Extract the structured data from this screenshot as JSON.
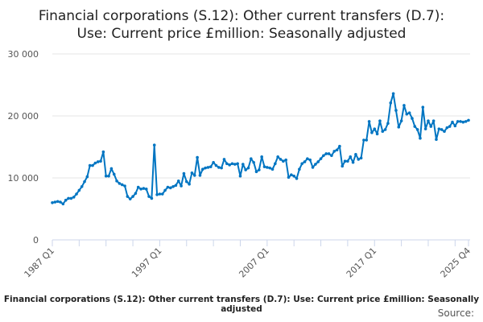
{
  "chart_data": {
    "type": "line",
    "title": [
      "Financial corporations (S.12): Other current transfers (D.7):",
      "Use: Current price £million: Seasonally adjusted"
    ],
    "xlabel": "",
    "ylabel": "",
    "start_year": 1987,
    "start_quarter": 1,
    "x_tick_labels": [
      "1987 Q1",
      "1997 Q1",
      "2007 Q1",
      "2017 Q1",
      "2025 Q4"
    ],
    "y_ticks": [
      0,
      10000,
      20000,
      30000
    ],
    "y_tick_labels": [
      "0",
      "10 000",
      "20 000",
      "30 000"
    ],
    "ylim": [
      0,
      30000
    ],
    "grid": true,
    "legend": "none",
    "series_color": "#0075c2",
    "series": [
      {
        "name": "Financial corporations (S.12): Other current transfers (D.7): Use: Current price £million: Seasonally adjusted",
        "values": [
          6000,
          6100,
          6200,
          6100,
          5800,
          6400,
          6700,
          6700,
          6900,
          7400,
          8000,
          8600,
          9400,
          10200,
          12000,
          12000,
          12400,
          12600,
          12700,
          14200,
          10300,
          10300,
          11500,
          10600,
          9500,
          9100,
          8900,
          8700,
          7000,
          6600,
          7000,
          7500,
          8500,
          8200,
          8300,
          8200,
          7000,
          6700,
          15300,
          7300,
          7400,
          7400,
          8000,
          8500,
          8400,
          8600,
          8800,
          9500,
          8700,
          10700,
          9400,
          9000,
          10800,
          10400,
          13300,
          10400,
          11400,
          11600,
          11700,
          11800,
          12500,
          12000,
          11700,
          11600,
          13000,
          12300,
          12100,
          12300,
          12200,
          12300,
          10300,
          12200,
          11300,
          11600,
          13100,
          12500,
          11000,
          11300,
          13400,
          11800,
          11700,
          11600,
          11400,
          12300,
          13400,
          13000,
          12700,
          12900,
          10100,
          10500,
          10300,
          9900,
          11400,
          12300,
          12600,
          13100,
          12900,
          11700,
          12200,
          12600,
          13100,
          13600,
          13900,
          13900,
          13600,
          14300,
          14500,
          15100,
          11900,
          12700,
          12700,
          13400,
          12500,
          13800,
          13000,
          13200,
          16100,
          16100,
          19100,
          17300,
          17900,
          17100,
          19200,
          17500,
          17800,
          18800,
          22100,
          23600,
          20900,
          18200,
          19200,
          21700,
          20300,
          20500,
          19600,
          18300,
          17800,
          16400,
          21400,
          17900,
          19200,
          18300,
          19200,
          16200,
          17900,
          17800,
          17500,
          18100,
          18300,
          19000,
          18400,
          19100,
          19100,
          19000,
          19100,
          19300
        ]
      }
    ]
  },
  "footer": {
    "series_label": "Financial corporations (S.12): Other current transfers (D.7): Use: Current price £million: Seasonally adjusted",
    "source_label": "Source:"
  }
}
